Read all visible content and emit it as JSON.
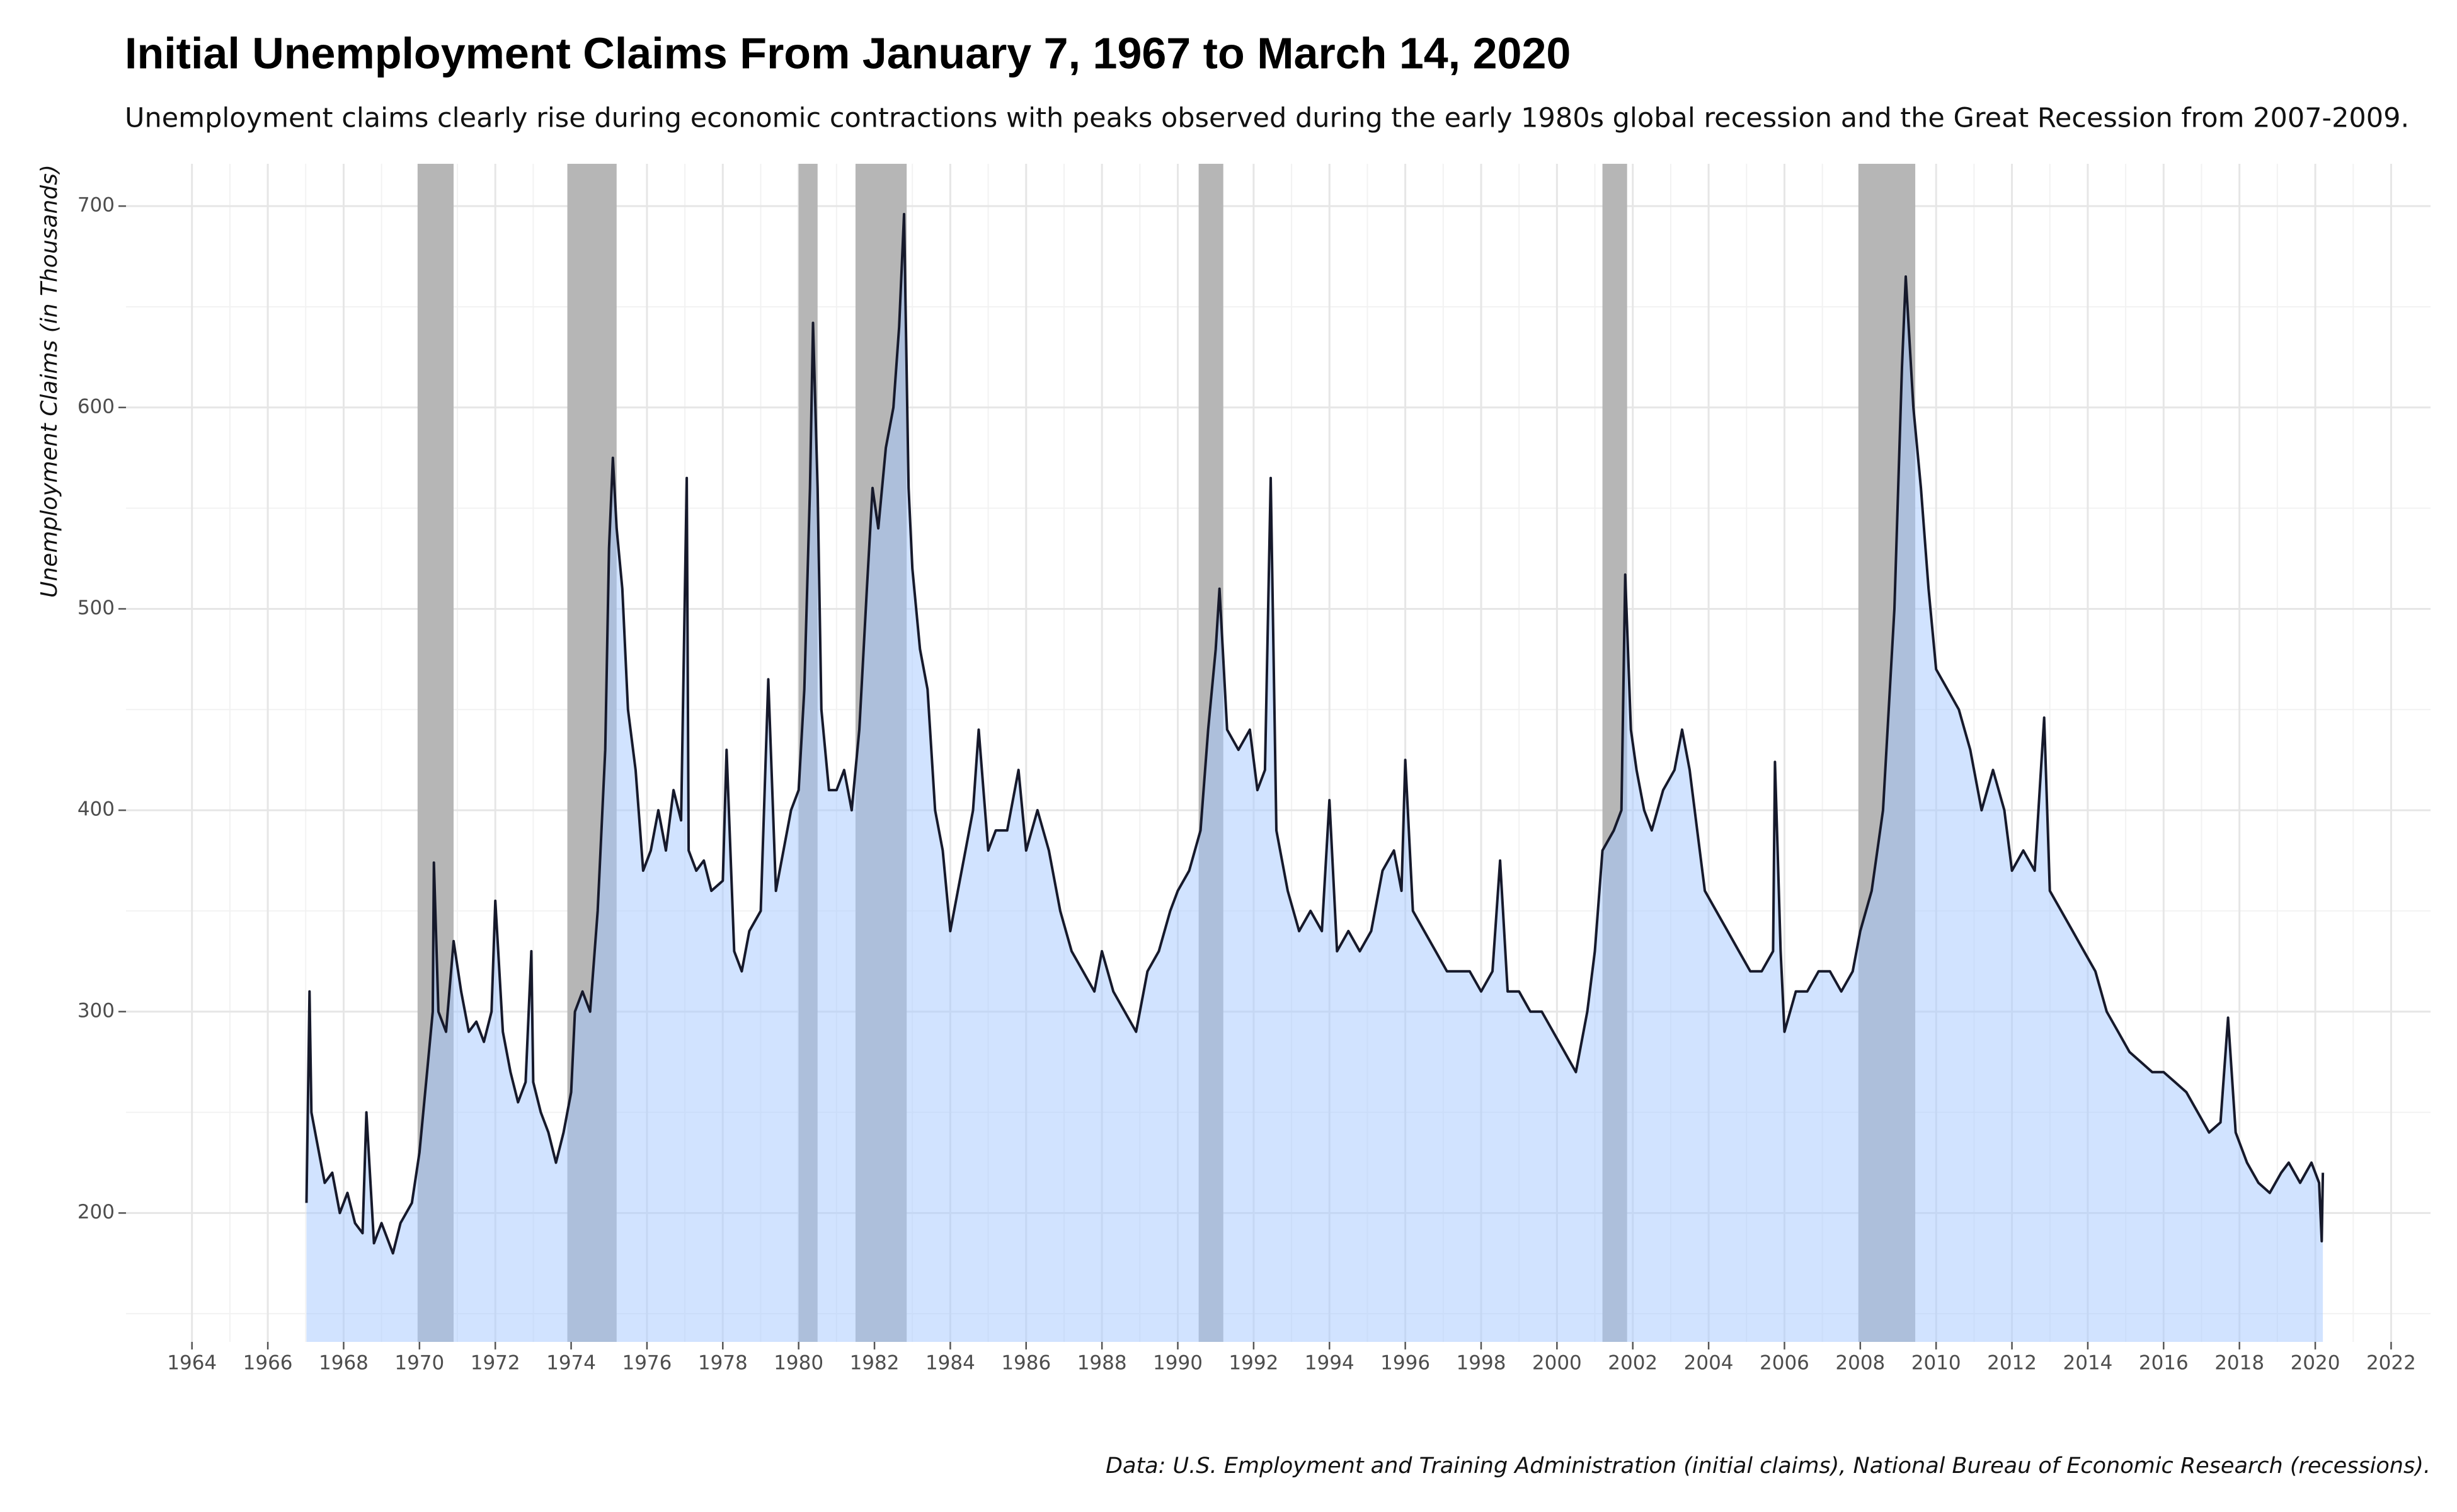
{
  "chart_data": {
    "type": "area",
    "title": "Initial Unemployment Claims From January 7, 1967 to March 14, 2020",
    "subtitle": "Unemployment claims clearly rise during economic contractions with peaks observed during the early 1980s global recession and the Great Recession from 2007-2009.",
    "y_label": "Unemployment Claims (in Thousands)",
    "caption": "Data: U.S. Employment and Training Administration (initial claims), National Bureau of Economic Research (recessions).",
    "x": [
      1967.02,
      1967.1,
      1967.15,
      1967.3,
      1967.5,
      1967.7,
      1967.9,
      1968.1,
      1968.3,
      1968.5,
      1968.6,
      1968.8,
      1969.0,
      1969.3,
      1969.5,
      1969.8,
      1970.0,
      1970.2,
      1970.35,
      1970.38,
      1970.5,
      1970.7,
      1970.9,
      1971.1,
      1971.3,
      1971.5,
      1971.7,
      1971.9,
      1972.0,
      1972.2,
      1972.4,
      1972.6,
      1972.8,
      1972.95,
      1973.0,
      1973.2,
      1973.4,
      1973.6,
      1973.8,
      1974.0,
      1974.1,
      1974.3,
      1974.5,
      1974.7,
      1974.9,
      1975.0,
      1975.1,
      1975.2,
      1975.35,
      1975.5,
      1975.7,
      1975.9,
      1976.1,
      1976.3,
      1976.5,
      1976.7,
      1976.9,
      1977.05,
      1977.1,
      1977.3,
      1977.5,
      1977.7,
      1978.0,
      1978.1,
      1978.3,
      1978.5,
      1978.7,
      1979.0,
      1979.2,
      1979.4,
      1979.6,
      1979.8,
      1980.0,
      1980.15,
      1980.3,
      1980.38,
      1980.5,
      1980.6,
      1980.8,
      1981.0,
      1981.2,
      1981.4,
      1981.6,
      1981.8,
      1981.95,
      1982.1,
      1982.3,
      1982.5,
      1982.65,
      1982.78,
      1982.9,
      1983.0,
      1983.2,
      1983.4,
      1983.6,
      1983.8,
      1984.0,
      1984.2,
      1984.4,
      1984.6,
      1984.75,
      1985.0,
      1985.2,
      1985.5,
      1985.8,
      1986.0,
      1986.3,
      1986.6,
      1986.9,
      1987.2,
      1987.5,
      1987.8,
      1988.0,
      1988.3,
      1988.6,
      1988.9,
      1989.2,
      1989.5,
      1989.8,
      1990.0,
      1990.3,
      1990.6,
      1990.8,
      1991.0,
      1991.1,
      1991.3,
      1991.6,
      1991.9,
      1992.1,
      1992.3,
      1992.45,
      1992.6,
      1992.9,
      1993.2,
      1993.5,
      1993.8,
      1994.0,
      1994.2,
      1994.5,
      1994.8,
      1995.1,
      1995.4,
      1995.7,
      1995.9,
      1996.0,
      1996.2,
      1996.5,
      1996.8,
      1997.1,
      1997.4,
      1997.7,
      1998.0,
      1998.3,
      1998.5,
      1998.7,
      1999.0,
      1999.3,
      1999.6,
      1999.9,
      2000.2,
      2000.5,
      2000.8,
      2001.0,
      2001.2,
      2001.5,
      2001.7,
      2001.8,
      2001.95,
      2002.1,
      2002.3,
      2002.5,
      2002.8,
      2003.1,
      2003.3,
      2003.5,
      2003.7,
      2003.9,
      2004.2,
      2004.5,
      2004.8,
      2005.1,
      2005.4,
      2005.7,
      2005.75,
      2005.9,
      2006.0,
      2006.3,
      2006.6,
      2006.9,
      2007.2,
      2007.5,
      2007.8,
      2008.0,
      2008.3,
      2008.6,
      2008.9,
      2009.1,
      2009.2,
      2009.4,
      2009.6,
      2009.8,
      2010.0,
      2010.3,
      2010.6,
      2010.9,
      2011.2,
      2011.5,
      2011.8,
      2012.0,
      2012.3,
      2012.6,
      2012.85,
      2013.0,
      2013.3,
      2013.6,
      2013.9,
      2014.2,
      2014.5,
      2014.8,
      2015.1,
      2015.4,
      2015.7,
      2016.0,
      2016.3,
      2016.6,
      2016.9,
      2017.2,
      2017.5,
      2017.7,
      2017.9,
      2018.2,
      2018.5,
      2018.8,
      2019.1,
      2019.3,
      2019.6,
      2019.9,
      2020.1,
      2020.17,
      2020.2
    ],
    "values": [
      205,
      310,
      250,
      235,
      215,
      220,
      200,
      210,
      195,
      190,
      250,
      185,
      195,
      180,
      195,
      205,
      230,
      270,
      300,
      374,
      300,
      290,
      335,
      310,
      290,
      295,
      285,
      300,
      355,
      290,
      270,
      255,
      265,
      330,
      265,
      250,
      240,
      225,
      240,
      260,
      300,
      310,
      300,
      350,
      430,
      530,
      575,
      540,
      510,
      450,
      420,
      370,
      380,
      400,
      380,
      410,
      395,
      565,
      380,
      370,
      375,
      360,
      365,
      430,
      330,
      320,
      340,
      350,
      465,
      360,
      380,
      400,
      410,
      460,
      560,
      642,
      560,
      450,
      410,
      410,
      420,
      400,
      440,
      510,
      560,
      540,
      580,
      600,
      640,
      696,
      560,
      520,
      480,
      460,
      400,
      380,
      340,
      360,
      380,
      400,
      440,
      380,
      390,
      390,
      420,
      380,
      400,
      380,
      350,
      330,
      320,
      310,
      330,
      310,
      300,
      290,
      320,
      330,
      350,
      360,
      370,
      390,
      440,
      480,
      510,
      440,
      430,
      440,
      410,
      420,
      565,
      390,
      360,
      340,
      350,
      340,
      405,
      330,
      340,
      330,
      340,
      370,
      380,
      360,
      425,
      350,
      340,
      330,
      320,
      320,
      320,
      310,
      320,
      375,
      310,
      310,
      300,
      300,
      290,
      280,
      270,
      300,
      330,
      380,
      390,
      400,
      517,
      440,
      420,
      400,
      390,
      410,
      420,
      440,
      420,
      390,
      360,
      350,
      340,
      330,
      320,
      320,
      330,
      424,
      330,
      290,
      310,
      310,
      320,
      320,
      310,
      320,
      340,
      360,
      400,
      500,
      620,
      665,
      600,
      560,
      510,
      470,
      460,
      450,
      430,
      400,
      420,
      400,
      370,
      380,
      370,
      446,
      360,
      350,
      340,
      330,
      320,
      300,
      290,
      280,
      275,
      270,
      270,
      265,
      260,
      250,
      240,
      245,
      297,
      240,
      225,
      215,
      210,
      220,
      225,
      215,
      225,
      215,
      186,
      220
    ],
    "line_color": "#16192b",
    "fill_color": "#a4c7ff",
    "recessions": [
      [
        1969.95,
        1970.9
      ],
      [
        1973.9,
        1975.2
      ],
      [
        1980.0,
        1980.5
      ],
      [
        1981.5,
        1982.85
      ],
      [
        1990.55,
        1991.2
      ],
      [
        2001.2,
        2001.85
      ],
      [
        2007.95,
        2009.45
      ]
    ],
    "recession_color": "#b6b6b6",
    "xlim": [
      1962.26,
      2023.04
    ],
    "ylim": [
      136,
      721
    ],
    "xticks": [
      1964,
      1966,
      1968,
      1970,
      1972,
      1974,
      1976,
      1978,
      1980,
      1982,
      1984,
      1986,
      1988,
      1990,
      1992,
      1994,
      1996,
      1998,
      2000,
      2002,
      2004,
      2006,
      2008,
      2010,
      2012,
      2014,
      2016,
      2018,
      2020,
      2022
    ],
    "yticks": [
      200,
      300,
      400,
      500,
      600,
      700
    ],
    "grid": true
  }
}
